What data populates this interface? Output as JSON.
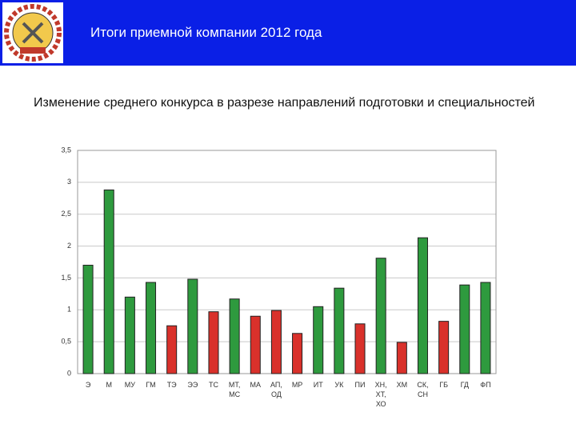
{
  "header": {
    "title": "Итоги приемной компании 2012 года"
  },
  "subtitle": "Изменение среднего конкурса в разрезе направлений подготовки и специальностей",
  "chart_data": {
    "type": "bar",
    "categories": [
      "Э",
      "М",
      "МУ",
      "ГМ",
      "ТЭ",
      "ЭЭ",
      "ТС",
      "МТ,\nМС",
      "МА",
      "АП,\nОД",
      "МР",
      "ИТ",
      "УК",
      "ПИ",
      "ХН,\nХТ,\nХО",
      "ХМ",
      "СК,\nСН",
      "ГБ",
      "ГД",
      "ФП"
    ],
    "values": [
      1.7,
      2.88,
      1.2,
      1.43,
      0.75,
      1.48,
      0.97,
      1.17,
      0.9,
      0.99,
      0.63,
      1.05,
      1.34,
      0.78,
      1.81,
      0.49,
      2.13,
      0.82,
      1.39,
      1.43
    ],
    "colors": [
      "#2e9a3e",
      "#2e9a3e",
      "#2e9a3e",
      "#2e9a3e",
      "#d9312b",
      "#2e9a3e",
      "#d9312b",
      "#2e9a3e",
      "#d9312b",
      "#d9312b",
      "#d9312b",
      "#2e9a3e",
      "#2e9a3e",
      "#d9312b",
      "#2e9a3e",
      "#d9312b",
      "#2e9a3e",
      "#d9312b",
      "#2e9a3e",
      "#2e9a3e"
    ],
    "ylim": [
      0,
      3.5
    ],
    "yticks": [
      0,
      {
        "value": 0.5,
        "label": "0,5"
      },
      1,
      {
        "value": 1.5,
        "label": "1,5"
      },
      2,
      {
        "value": 2.5,
        "label": "2,5"
      },
      3,
      {
        "value": 3.5,
        "label": "3,5"
      }
    ],
    "grid": true
  }
}
